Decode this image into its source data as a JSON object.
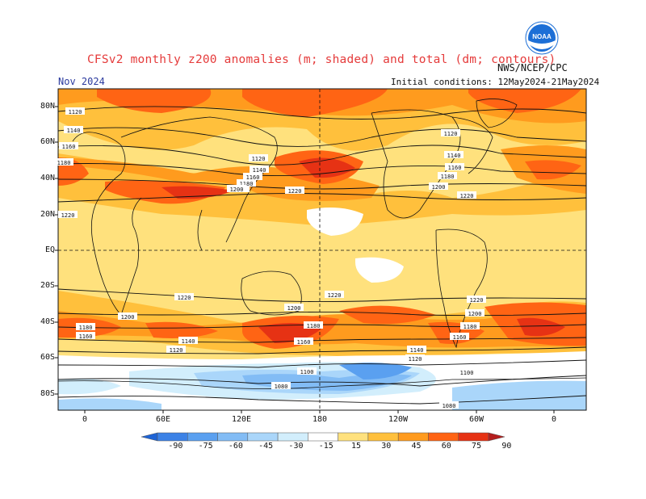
{
  "header": {
    "title": "CFSv2 monthly z200 anomalies (m; shaded) and total (dm; contours)",
    "credit": "NWS/NCEP/CPC",
    "month": "Nov 2024",
    "initial_conditions": "Initial conditions: 12May2024-21May2024",
    "logo_text": "NOAA"
  },
  "axes": {
    "lat_labels": [
      "80N",
      "60N",
      "40N",
      "20N",
      "EQ",
      "20S",
      "40S",
      "60S",
      "80S"
    ],
    "lon_labels": [
      "0",
      "60E",
      "120E",
      "180",
      "120W",
      "60W",
      "0"
    ]
  },
  "contour_labels": [
    "1120",
    "1140",
    "1160",
    "1180",
    "1200",
    "1220",
    "1120",
    "1140",
    "1160",
    "1180",
    "1200",
    "1220",
    "1120",
    "1140",
    "1160",
    "1180",
    "1200",
    "1220",
    "1220",
    "1200",
    "1180",
    "1160",
    "1220",
    "1200",
    "1180",
    "1160",
    "1140",
    "1120",
    "1100",
    "1080",
    "1220",
    "1200",
    "1180",
    "1160",
    "1140",
    "1120",
    "1100",
    "1080",
    "1220",
    "1200",
    "1180",
    "1160",
    "1140",
    "1120",
    "1100",
    "1080"
  ],
  "colorbar": {
    "levels": [
      "-90",
      "-75",
      "-60",
      "-45",
      "-30",
      "-15",
      "15",
      "30",
      "45",
      "60",
      "75",
      "90"
    ],
    "colors": [
      "#1e64d6",
      "#3c82e6",
      "#5aa0f0",
      "#82bcf5",
      "#aad6fa",
      "#d2eefc",
      "#ffffff",
      "#ffe17d",
      "#ffc03c",
      "#ff9b1e",
      "#ff6414",
      "#e63214",
      "#b41e1e"
    ]
  },
  "colors": {
    "title": "#e53b3b",
    "month": "#2b3a9e",
    "background_anomaly": "#ffe17d"
  }
}
